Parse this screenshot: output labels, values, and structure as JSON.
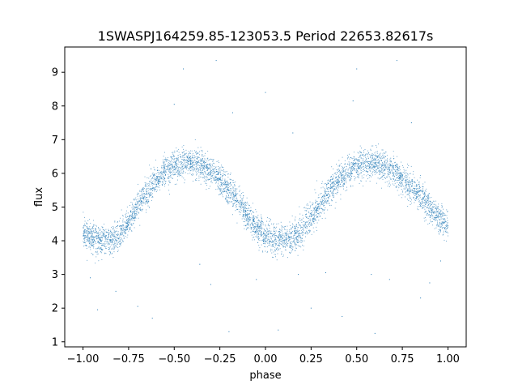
{
  "chart_data": {
    "type": "scatter",
    "title": "1SWASPJ164259.85-123053.5 Period 22653.82617s",
    "xlabel": "phase",
    "ylabel": "flux",
    "xlim": [
      -1.1,
      1.1
    ],
    "ylim": [
      0.85,
      9.75
    ],
    "xticks": [
      -1.0,
      -0.75,
      -0.5,
      -0.25,
      0.0,
      0.25,
      0.5,
      0.75,
      1.0
    ],
    "xtick_labels": [
      "−1.00",
      "−0.75",
      "−0.50",
      "−0.25",
      "0.00",
      "0.25",
      "0.50",
      "0.75",
      "1.00"
    ],
    "yticks": [
      1,
      2,
      3,
      4,
      5,
      6,
      7,
      8,
      9
    ],
    "ytick_labels": [
      "1",
      "2",
      "3",
      "4",
      "5",
      "6",
      "7",
      "8",
      "9"
    ],
    "grid": false,
    "point_color": "#1f77b4",
    "model": {
      "description_of_shape": "folded light curve, two cycles",
      "mean": 5.15,
      "amplitude": 1.15,
      "max_phase": -0.4,
      "scatter": 0.22
    },
    "series": [
      {
        "x": [
          -1.0,
          -0.95,
          -0.9,
          -0.85,
          -0.8,
          -0.75,
          -0.7,
          -0.65,
          -0.6,
          -0.55,
          -0.5,
          -0.45,
          -0.4,
          -0.35,
          -0.3,
          -0.25,
          -0.2,
          -0.15,
          -0.1,
          -0.05,
          0.0,
          0.05,
          0.1,
          0.15,
          0.2,
          0.25,
          0.3,
          0.35,
          0.4,
          0.45,
          0.5,
          0.55,
          0.6,
          0.65,
          0.7,
          0.75,
          0.8,
          0.85,
          0.9,
          0.95,
          1.0
        ],
        "y": [
          4.25,
          4.1,
          4.0,
          4.0,
          4.15,
          4.55,
          5.05,
          5.45,
          5.8,
          6.05,
          6.2,
          6.3,
          6.3,
          6.2,
          6.05,
          5.8,
          5.5,
          5.15,
          4.75,
          4.4,
          4.15,
          4.05,
          4.0,
          4.05,
          4.3,
          4.7,
          5.1,
          5.5,
          5.8,
          6.05,
          6.2,
          6.3,
          6.3,
          6.2,
          6.05,
          5.85,
          5.6,
          5.3,
          5.0,
          4.7,
          4.4
        ]
      }
    ],
    "outliers": [
      {
        "x": -0.5,
        "y": 8.05
      },
      {
        "x": 0.0,
        "y": 8.4
      },
      {
        "x": 0.48,
        "y": 8.15
      },
      {
        "x": -0.27,
        "y": 9.35
      },
      {
        "x": 0.72,
        "y": 9.35
      },
      {
        "x": -0.18,
        "y": 7.8
      },
      {
        "x": 0.8,
        "y": 7.5
      },
      {
        "x": 0.15,
        "y": 7.2
      },
      {
        "x": -0.45,
        "y": 9.1
      },
      {
        "x": 0.5,
        "y": 9.1
      },
      {
        "x": -0.2,
        "y": 1.3
      },
      {
        "x": 0.6,
        "y": 1.25
      },
      {
        "x": -0.92,
        "y": 1.95
      },
      {
        "x": 0.07,
        "y": 1.35
      },
      {
        "x": -0.82,
        "y": 2.5
      },
      {
        "x": 0.25,
        "y": 2.0
      },
      {
        "x": 0.42,
        "y": 1.75
      },
      {
        "x": -0.62,
        "y": 1.7
      },
      {
        "x": 0.85,
        "y": 2.3
      },
      {
        "x": 0.9,
        "y": 2.75
      },
      {
        "x": -0.96,
        "y": 2.9
      },
      {
        "x": 0.96,
        "y": 3.4
      },
      {
        "x": -0.3,
        "y": 2.7
      },
      {
        "x": 0.33,
        "y": 3.05
      },
      {
        "x": -0.05,
        "y": 2.85
      },
      {
        "x": 0.18,
        "y": 3.0
      },
      {
        "x": -0.7,
        "y": 2.05
      },
      {
        "x": 0.68,
        "y": 2.85
      },
      {
        "x": -0.36,
        "y": 3.3
      },
      {
        "x": 0.58,
        "y": 3.0
      }
    ]
  }
}
